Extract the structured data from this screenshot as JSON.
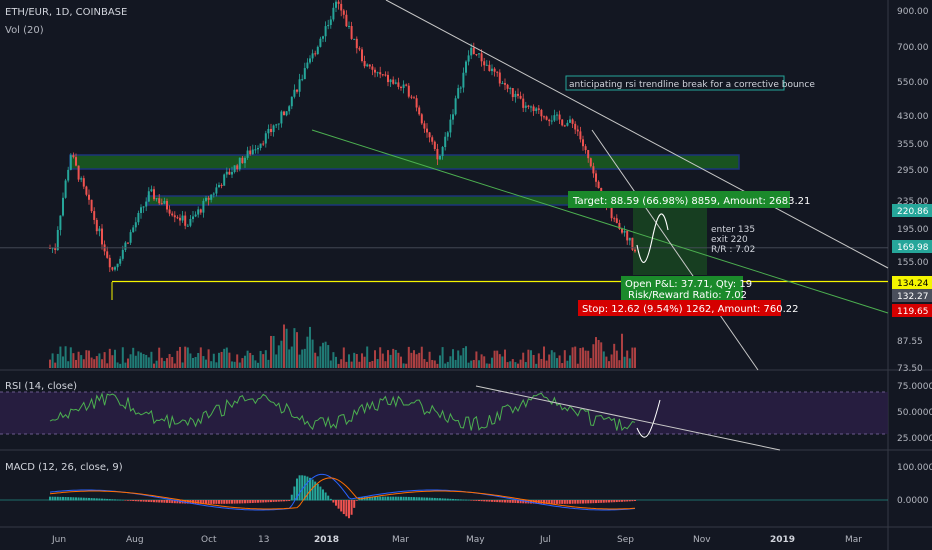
{
  "header": {
    "symbol": "ETH/EUR, 1D, COINBASE",
    "volume_label": "Vol (20)",
    "rsi_label": "RSI (14, close)",
    "macd_label": "MACD (12, 26, close, 9)"
  },
  "colors": {
    "background": "#131722",
    "up": "#26a69a",
    "down": "#ef5350",
    "target_box": "#2e7d32",
    "stop_box": "#d50000",
    "zone_fill": "#1b5e20",
    "zone_stroke": "#1e3a8a",
    "support_line": "#f5f500",
    "trend_green": "#4caf50",
    "trend_white": "#c8c8c8",
    "rsi_line": "#4caf50",
    "rsi_band": "#2a1f44",
    "macd_line": "#2962ff",
    "signal_line": "#ff6d00",
    "hist_pos": "#26a69a",
    "hist_neg": "#ef5350"
  },
  "annotations": {
    "note": "anticipating rsi trendline break for a corrective bounce",
    "target": "Target: 88.59 (66.98%) 8859, Amount: 2683.21",
    "open_pnl": "Open P&L: 37.71, Qty: 19",
    "risk_reward": "Risk/Reward Ratio: 7.02",
    "stop": "Stop: 12.62 (9.54%) 1262, Amount: 760.22",
    "plan_enter": "enter 135",
    "plan_exit": "exit 220",
    "plan_rr": "R/R : 7.02"
  },
  "chart_data": [
    {
      "type": "candlestick",
      "title": "ETH/EUR, 1D, COINBASE",
      "scale": "log",
      "price_ticks": [
        "900.00",
        "700.00",
        "550.00",
        "430.00",
        "355.00",
        "295.00",
        "235.00",
        "195.00",
        "155.00",
        "87.55",
        "73.50"
      ],
      "price_tick_values": [
        900,
        700,
        550,
        430,
        355,
        295,
        235,
        195,
        155,
        87.55,
        73.5
      ],
      "price_tags": [
        {
          "label": "220.86",
          "value": 220.86,
          "color": "#26a69a"
        },
        {
          "label": "169.98",
          "value": 169.98,
          "color": "#26a69a"
        },
        {
          "label": "134.24",
          "value": 134.24,
          "color": "#f5f500"
        },
        {
          "label": "132.27",
          "value": 132.27,
          "color": "#4a4f5c"
        },
        {
          "label": "119.65",
          "value": 119.65,
          "color": "#d50000"
        }
      ],
      "x_ticks": [
        "Jun",
        "Aug",
        "Oct",
        "13",
        "2018",
        "Mar",
        "May",
        "Jul",
        "Sep",
        "Nov",
        "2019",
        "Mar"
      ],
      "series_close_approx": [
        {
          "date": "2017-06-01",
          "close": 190
        },
        {
          "date": "2017-06-12",
          "close": 330
        },
        {
          "date": "2017-07-16",
          "close": 145
        },
        {
          "date": "2017-08-15",
          "close": 250
        },
        {
          "date": "2017-09-15",
          "close": 200
        },
        {
          "date": "2017-10-15",
          "close": 280
        },
        {
          "date": "2017-11-25",
          "close": 400
        },
        {
          "date": "2017-12-20",
          "close": 600
        },
        {
          "date": "2018-01-13",
          "close": 950
        },
        {
          "date": "2018-02-06",
          "close": 600
        },
        {
          "date": "2018-03-15",
          "close": 500
        },
        {
          "date": "2018-04-05",
          "close": 310
        },
        {
          "date": "2018-05-01",
          "close": 690
        },
        {
          "date": "2018-06-15",
          "close": 450
        },
        {
          "date": "2018-07-25",
          "close": 400
        },
        {
          "date": "2018-08-15",
          "close": 240
        },
        {
          "date": "2018-09-10",
          "close": 170
        }
      ]
    },
    {
      "type": "line",
      "title": "RSI (14, close)",
      "y_ticks": [
        "75.0000",
        "50.0000",
        "25.0000"
      ],
      "y_tick_values": [
        75,
        50,
        25
      ],
      "band": [
        30,
        70
      ]
    },
    {
      "type": "line",
      "title": "MACD (12, 26, close, 9)",
      "y_ticks": [
        "100.0000",
        "0.0000"
      ],
      "y_tick_values": [
        100,
        0
      ]
    }
  ]
}
